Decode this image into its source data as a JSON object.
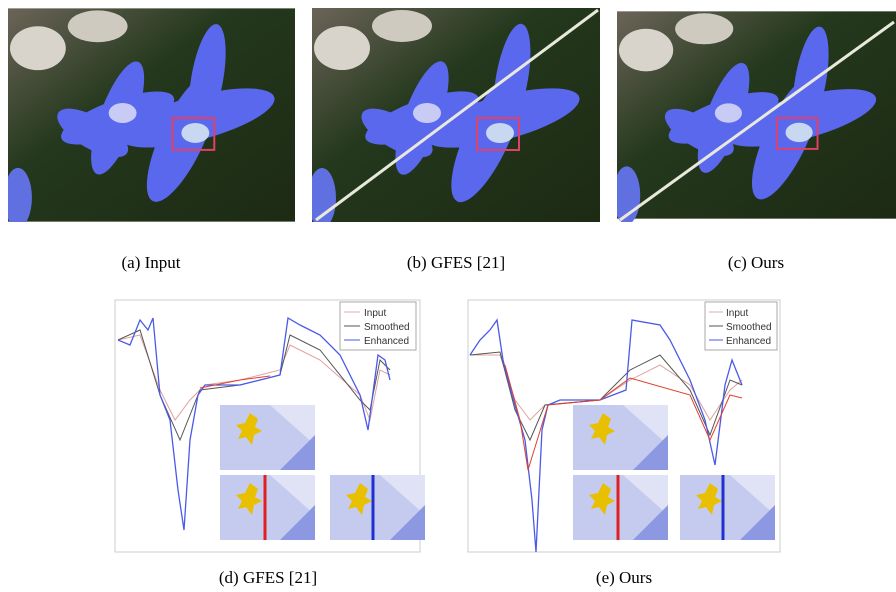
{
  "panels": [
    {
      "caption": "(a)  Input"
    },
    {
      "caption": "(b)  GFES [21]"
    },
    {
      "caption": "(c)  Ours"
    }
  ],
  "plots": [
    {
      "legend": [
        "Input",
        "Smoothed",
        "Enhanced"
      ],
      "caption": "(d)  GFES [21]"
    },
    {
      "legend": [
        "Input",
        "Smoothed",
        "Enhanced"
      ],
      "caption": "(e)  Ours"
    }
  ]
}
